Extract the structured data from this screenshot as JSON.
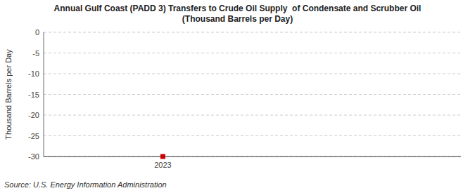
{
  "chart_data": {
    "type": "scatter",
    "title": "Annual Gulf Coast (PADD 3) Transfers to Crude Oil Supply  of Condensate and Scrubber Oil\n(Thousand Barrels per Day)",
    "y_label": "Thousand Barrels per Day",
    "source": "Source: U.S. Energy Information Administration",
    "x": [
      2023
    ],
    "values": [
      -30
    ],
    "color": "#cc0000",
    "marker": "square",
    "xlim": [
      2022.6,
      2024.0
    ],
    "xticks": [
      2023
    ],
    "ylim": [
      -30,
      0
    ],
    "yticks": [
      0,
      -5,
      -10,
      -15,
      -20,
      -25,
      -30
    ],
    "grid": true
  }
}
